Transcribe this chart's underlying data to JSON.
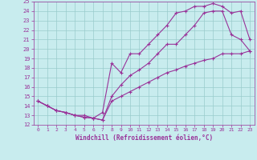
{
  "xlabel": "Windchill (Refroidissement éolien,°C)",
  "bg_color": "#c8ecee",
  "line_color": "#993399",
  "grid_color": "#99cccc",
  "xlim": [
    -0.5,
    23.5
  ],
  "ylim": [
    12,
    25
  ],
  "xticks": [
    0,
    1,
    2,
    3,
    4,
    5,
    6,
    7,
    8,
    9,
    10,
    11,
    12,
    13,
    14,
    15,
    16,
    17,
    18,
    19,
    20,
    21,
    22,
    23
  ],
  "yticks": [
    12,
    13,
    14,
    15,
    16,
    17,
    18,
    19,
    20,
    21,
    22,
    23,
    24,
    25
  ],
  "lines": [
    {
      "x": [
        0,
        1,
        2,
        3,
        4,
        5,
        6,
        7,
        8,
        9,
        10,
        11,
        12,
        13,
        14,
        15,
        16,
        17,
        18,
        19,
        20,
        21,
        22,
        23
      ],
      "y": [
        14.5,
        14.0,
        13.5,
        13.3,
        13.0,
        13.0,
        12.7,
        13.3,
        18.5,
        17.5,
        19.5,
        19.5,
        20.5,
        21.5,
        22.5,
        23.8,
        24.0,
        24.5,
        24.5,
        24.8,
        24.5,
        23.8,
        24.0,
        21.0
      ]
    },
    {
      "x": [
        0,
        1,
        2,
        3,
        4,
        5,
        6,
        7,
        8,
        9,
        10,
        11,
        12,
        13,
        14,
        15,
        16,
        17,
        18,
        19,
        20,
        21,
        22,
        23
      ],
      "y": [
        14.5,
        14.0,
        13.5,
        13.3,
        13.0,
        12.8,
        12.7,
        12.5,
        15.0,
        16.2,
        17.2,
        17.8,
        18.5,
        19.5,
        20.5,
        20.5,
        21.5,
        22.5,
        23.8,
        24.0,
        24.0,
        21.5,
        21.0,
        19.8
      ]
    },
    {
      "x": [
        0,
        1,
        2,
        3,
        4,
        5,
        6,
        7,
        8,
        9,
        10,
        11,
        12,
        13,
        14,
        15,
        16,
        17,
        18,
        19,
        20,
        21,
        22,
        23
      ],
      "y": [
        14.5,
        14.0,
        13.5,
        13.3,
        13.0,
        12.8,
        12.7,
        12.5,
        14.5,
        15.0,
        15.5,
        16.0,
        16.5,
        17.0,
        17.5,
        17.8,
        18.2,
        18.5,
        18.8,
        19.0,
        19.5,
        19.5,
        19.5,
        19.8
      ]
    }
  ]
}
